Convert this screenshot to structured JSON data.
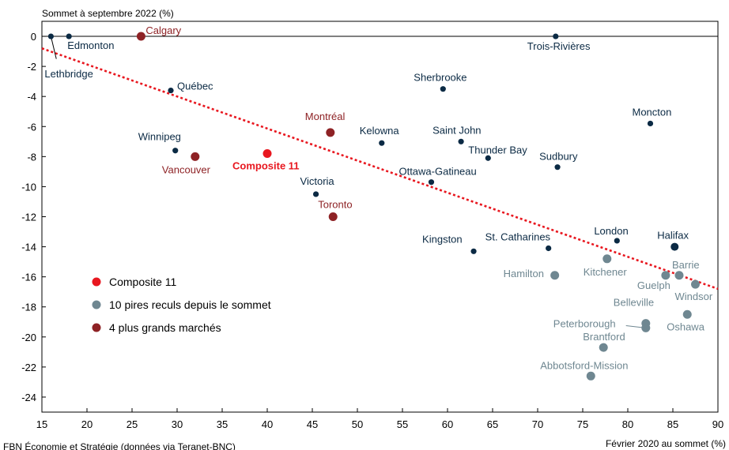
{
  "chart_data": {
    "type": "scatter",
    "ylabel": "Sommet à septembre 2022 (%)",
    "xlabel": "Février 2020 au sommet (%)",
    "source": "FBN Économie et Stratégie (données via Teranet-BNC)",
    "xlim": [
      15,
      90
    ],
    "ylim": [
      -25,
      1
    ],
    "x_ticks": [
      15,
      20,
      25,
      30,
      35,
      40,
      45,
      50,
      55,
      60,
      65,
      70,
      75,
      80,
      85,
      90
    ],
    "y_ticks": [
      0,
      -2,
      -4,
      -6,
      -8,
      -10,
      -12,
      -14,
      -16,
      -18,
      -20,
      -22,
      -24
    ],
    "colors": {
      "composite": "#e8171f",
      "worst": "#6f8791",
      "largest": "#8e2225",
      "other": "#0b2a44",
      "trend": "#e8171f"
    },
    "legend": [
      {
        "label": "Composite 11",
        "group": "composite"
      },
      {
        "label": "10 pires reculs depuis le sommet",
        "group": "worst"
      },
      {
        "label": "4 plus grands marchés",
        "group": "largest"
      }
    ],
    "trendline": {
      "x": [
        15,
        90
      ],
      "y": [
        -0.8,
        -16.8
      ]
    },
    "points": [
      {
        "name": "Lethbridge",
        "x": 16.0,
        "y": 0.0,
        "group": "other"
      },
      {
        "name": "Edmonton",
        "x": 18.0,
        "y": 0.0,
        "group": "other"
      },
      {
        "name": "Calgary",
        "x": 26.0,
        "y": 0.0,
        "group": "largest"
      },
      {
        "name": "Trois-Rivières",
        "x": 72.0,
        "y": 0.0,
        "group": "other"
      },
      {
        "name": "Québec",
        "x": 29.3,
        "y": -3.6,
        "group": "other"
      },
      {
        "name": "Sherbrooke",
        "x": 59.5,
        "y": -3.5,
        "group": "other"
      },
      {
        "name": "Moncton",
        "x": 82.5,
        "y": -5.8,
        "group": "other"
      },
      {
        "name": "Montréal",
        "x": 47.0,
        "y": -6.4,
        "group": "largest"
      },
      {
        "name": "Kelowna",
        "x": 52.7,
        "y": -7.1,
        "group": "other"
      },
      {
        "name": "Saint John",
        "x": 61.5,
        "y": -7.0,
        "group": "other"
      },
      {
        "name": "Winnipeg",
        "x": 29.8,
        "y": -7.6,
        "group": "other"
      },
      {
        "name": "Vancouver",
        "x": 32.0,
        "y": -8.0,
        "group": "largest"
      },
      {
        "name": "Composite 11",
        "x": 40.0,
        "y": -7.8,
        "group": "composite"
      },
      {
        "name": "Thunder Bay",
        "x": 64.5,
        "y": -8.1,
        "group": "other"
      },
      {
        "name": "Sudbury",
        "x": 72.2,
        "y": -8.7,
        "group": "other"
      },
      {
        "name": "Ottawa-Gatineau",
        "x": 58.2,
        "y": -9.7,
        "group": "other"
      },
      {
        "name": "Victoria",
        "x": 45.4,
        "y": -10.5,
        "group": "other"
      },
      {
        "name": "Toronto",
        "x": 47.3,
        "y": -12.0,
        "group": "largest"
      },
      {
        "name": "London",
        "x": 78.8,
        "y": -13.6,
        "group": "other"
      },
      {
        "name": "Halifax",
        "x": 85.2,
        "y": -14.0,
        "group": "other"
      },
      {
        "name": "Kingston",
        "x": 62.9,
        "y": -14.3,
        "group": "other"
      },
      {
        "name": "St. Catharines",
        "x": 71.2,
        "y": -14.1,
        "group": "other"
      },
      {
        "name": "Kitchener",
        "x": 77.7,
        "y": -14.8,
        "group": "worst"
      },
      {
        "name": "Hamilton",
        "x": 71.9,
        "y": -15.9,
        "group": "worst"
      },
      {
        "name": "Barrie",
        "x": 85.7,
        "y": -15.9,
        "group": "worst"
      },
      {
        "name": "Guelph",
        "x": 84.2,
        "y": -15.9,
        "group": "worst"
      },
      {
        "name": "Windsor",
        "x": 87.5,
        "y": -16.5,
        "group": "worst"
      },
      {
        "name": "Oshawa",
        "x": 86.6,
        "y": -18.5,
        "group": "worst"
      },
      {
        "name": "Belleville",
        "x": 82.0,
        "y": -19.1,
        "group": "worst"
      },
      {
        "name": "Peterborough",
        "x": 82.0,
        "y": -19.4,
        "group": "worst"
      },
      {
        "name": "Brantford",
        "x": 77.3,
        "y": -20.7,
        "group": "worst"
      },
      {
        "name": "Abbotsford-Mission",
        "x": 75.9,
        "y": -22.6,
        "group": "worst"
      }
    ]
  }
}
